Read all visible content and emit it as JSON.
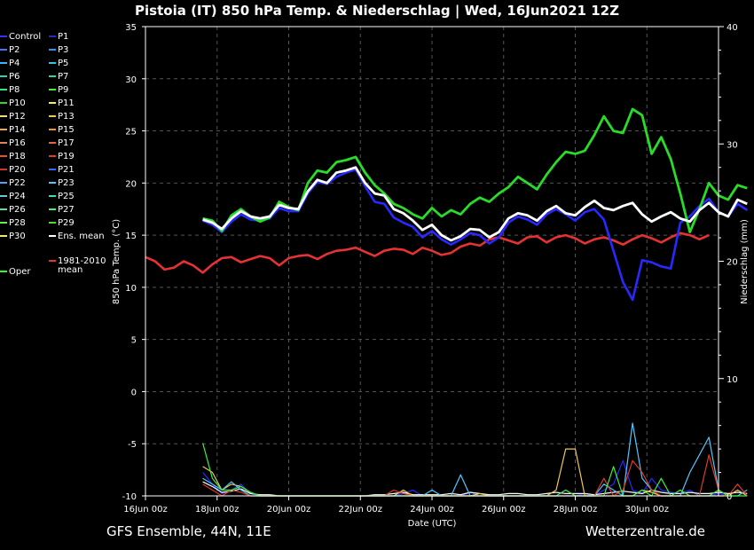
{
  "chart_data": {
    "type": "line",
    "title": "Pistoia  (IT)  850 hPa Temp. & Niederschlag | Wed, 16Jun2021 12Z",
    "footer_left": "GFS Ensemble, 44N, 11E",
    "footer_right": "Wetterzentrale.de",
    "xlabel": "Date (UTC)",
    "ylabel_left": "850 hPa Temp. (°C)",
    "ylabel_right": "Niederschlag (mm)",
    "x_ticks": [
      "16Jun 00z",
      "18Jun 00z",
      "20Jun 00z",
      "22Jun 00z",
      "24Jun 00z",
      "26Jun 00z",
      "28Jun 00z",
      "30Jun 00z"
    ],
    "x_range_hours": [
      0,
      360
    ],
    "x_step_hours": 6,
    "y_left_range": [
      -10,
      35
    ],
    "y_left_ticks": [
      "35",
      "30",
      "25",
      "20",
      "15",
      "10",
      "5",
      "0",
      "-5",
      "-10"
    ],
    "y_right_range": [
      0,
      40
    ],
    "y_right_ticks": [
      "40",
      "30",
      "20",
      "10",
      "0"
    ],
    "grid": true,
    "legend_position": "left",
    "legend": [
      {
        "label": "Control",
        "color": "#3030ff"
      },
      {
        "label": "P1",
        "color": "#2828c8"
      },
      {
        "label": "P2",
        "color": "#3c78ff"
      },
      {
        "label": "P3",
        "color": "#2896ff"
      },
      {
        "label": "P4",
        "color": "#3cb4ff"
      },
      {
        "label": "P5",
        "color": "#28c8e6"
      },
      {
        "label": "P6",
        "color": "#28d2b4"
      },
      {
        "label": "P7",
        "color": "#28dc96"
      },
      {
        "label": "P8",
        "color": "#32e678"
      },
      {
        "label": "P9",
        "color": "#3cf03c"
      },
      {
        "label": "P10",
        "color": "#28dc28"
      },
      {
        "label": "P11",
        "color": "#f0f050"
      },
      {
        "label": "P12",
        "color": "#f5dc78"
      },
      {
        "label": "P13",
        "color": "#f0c850"
      },
      {
        "label": "P14",
        "color": "#f0aa3c"
      },
      {
        "label": "P15",
        "color": "#f09628"
      },
      {
        "label": "P16",
        "color": "#e6825a"
      },
      {
        "label": "P17",
        "color": "#e6643c"
      },
      {
        "label": "P18",
        "color": "#e65028"
      },
      {
        "label": "P19",
        "color": "#dc3c28"
      },
      {
        "label": "P20",
        "color": "#d23232"
      },
      {
        "label": "P21",
        "color": "#3c64ff"
      },
      {
        "label": "P22",
        "color": "#50a0ff"
      },
      {
        "label": "P23",
        "color": "#50c8ff"
      },
      {
        "label": "P24",
        "color": "#64c8dc"
      },
      {
        "label": "P25",
        "color": "#3cdcb4"
      },
      {
        "label": "P26",
        "color": "#50e696"
      },
      {
        "label": "P27",
        "color": "#3cf078"
      },
      {
        "label": "P28",
        "color": "#64f050"
      },
      {
        "label": "P29",
        "color": "#50dc28"
      },
      {
        "label": "P30",
        "color": "#f0f03c"
      },
      {
        "label": "Ens. mean",
        "color": "#ffffff"
      },
      {
        "label": "Oper",
        "color": "#28ff28"
      },
      {
        "label": "1981-2010\nmean",
        "color": "#e63232"
      }
    ],
    "series": [
      {
        "name": "Ens. mean",
        "role": "mean",
        "color": "#ffffff",
        "start_hour": 36,
        "values": [
          16.5,
          16.2,
          15.6,
          16.6,
          17.3,
          16.8,
          16.6,
          16.8,
          17.9,
          17.6,
          17.5,
          19.2,
          20.3,
          20.0,
          21.0,
          21.2,
          21.5,
          20.0,
          19.0,
          18.8,
          17.5,
          17.1,
          16.4,
          15.5,
          16.0,
          15.0,
          14.5,
          14.9,
          15.6,
          15.5,
          14.8,
          15.3,
          16.6,
          17.1,
          16.9,
          16.4,
          17.3,
          17.8,
          17.1,
          16.9,
          17.7,
          18.3,
          17.6,
          17.4,
          17.8,
          18.1,
          17.0,
          16.3,
          16.8,
          17.2,
          16.6,
          16.3,
          17.4,
          18.1,
          17.2,
          16.8,
          18.4,
          18.0
        ]
      },
      {
        "name": "Oper",
        "role": "oper",
        "color": "#28dc28",
        "start_hour": 36,
        "values": [
          16.6,
          16.4,
          15.4,
          16.9,
          17.5,
          16.8,
          16.3,
          16.7,
          18.2,
          17.7,
          17.4,
          20.0,
          21.2,
          21.0,
          22.0,
          22.2,
          22.5,
          21.0,
          19.8,
          19.0,
          18.0,
          17.6,
          17.0,
          16.6,
          17.6,
          16.8,
          17.4,
          17.0,
          18.0,
          18.6,
          18.2,
          19.0,
          19.6,
          20.6,
          20.0,
          19.4,
          20.8,
          22.0,
          23.0,
          22.8,
          23.1,
          24.6,
          26.4,
          25.0,
          24.8,
          27.1,
          26.5,
          22.8,
          24.4,
          22.3,
          19.0,
          15.3,
          17.5,
          20.0,
          18.8,
          18.4,
          19.8,
          19.5
        ]
      },
      {
        "name": "Control",
        "role": "control",
        "color": "#2828ff",
        "start_hour": 36,
        "values": [
          16.4,
          16.0,
          15.3,
          16.3,
          17.0,
          16.5,
          16.4,
          16.6,
          17.6,
          17.3,
          17.3,
          19.0,
          20.1,
          19.9,
          20.6,
          21.0,
          21.3,
          19.7,
          18.2,
          18.0,
          16.7,
          16.2,
          15.8,
          14.8,
          15.4,
          14.6,
          14.1,
          14.6,
          15.2,
          15.0,
          14.2,
          14.8,
          16.2,
          16.8,
          16.5,
          16.0,
          17.0,
          17.5,
          17.0,
          16.4,
          17.2,
          17.5,
          16.5,
          13.5,
          10.5,
          8.8,
          12.6,
          12.4,
          12.0,
          11.8,
          16.2,
          16.8,
          17.8,
          18.5,
          17.2,
          16.8,
          18.0,
          17.4
        ]
      },
      {
        "name": "1981-2010\nmean",
        "role": "clim",
        "color": "#e63232",
        "start_hour": 0,
        "values": [
          12.9,
          12.5,
          11.7,
          11.9,
          12.5,
          12.1,
          11.4,
          12.2,
          12.8,
          12.9,
          12.4,
          12.7,
          13.0,
          12.8,
          12.1,
          12.8,
          13.0,
          13.1,
          12.7,
          13.2,
          13.5,
          13.6,
          13.8,
          13.4,
          13.0,
          13.5,
          13.7,
          13.6,
          13.2,
          13.8,
          13.5,
          13.1,
          13.3,
          13.9,
          14.2,
          14.0,
          14.6,
          14.8,
          14.5,
          14.2,
          14.8,
          14.9,
          14.3,
          14.8,
          15.0,
          14.7,
          14.2,
          14.6,
          14.8,
          14.5,
          14.1,
          14.6,
          15.0,
          14.7,
          14.3,
          14.8,
          15.2,
          15.0,
          14.6,
          15.0
        ]
      },
      {
        "name": "Niederschlag Control",
        "role": "precip",
        "axis": "right",
        "color": "#2828ff",
        "start_hour": 36,
        "values": [
          2.0,
          1.0,
          0.2,
          0.5,
          1.0,
          0.2,
          0.0,
          0.0,
          0.0,
          0.0,
          0.0,
          0.0,
          0.0,
          0.0,
          0.0,
          0.0,
          0.0,
          0.0,
          0.0,
          0.0,
          0.0,
          0.2,
          0.5,
          0.0,
          0.0,
          0.0,
          0.0,
          0.0,
          0.3,
          0.0,
          0.0,
          0.0,
          0.0,
          0.0,
          0.0,
          0.0,
          0.0,
          0.0,
          0.5,
          0.0,
          0.2,
          0.0,
          0.5,
          1.0,
          3.0,
          0.5,
          0.2,
          1.5,
          0.5,
          0.3,
          0.2,
          0.5,
          0.0,
          0.0,
          0.2,
          0.0,
          0.5,
          0.0
        ]
      },
      {
        "name": "Niederschlag Ens. mean",
        "role": "precip",
        "axis": "right",
        "color": "#ffffff",
        "start_hour": 36,
        "values": [
          1.2,
          0.8,
          0.3,
          0.4,
          0.6,
          0.2,
          0.1,
          0.1,
          0.0,
          0.0,
          0.0,
          0.0,
          0.0,
          0.0,
          0.0,
          0.0,
          0.0,
          0.0,
          0.1,
          0.1,
          0.2,
          0.3,
          0.1,
          0.1,
          0.1,
          0.1,
          0.2,
          0.1,
          0.3,
          0.2,
          0.1,
          0.1,
          0.2,
          0.2,
          0.1,
          0.1,
          0.2,
          0.3,
          0.2,
          0.2,
          0.2,
          0.1,
          0.2,
          0.3,
          0.4,
          0.3,
          0.2,
          0.5,
          0.3,
          0.2,
          0.2,
          0.3,
          0.2,
          0.2,
          0.3,
          0.2,
          0.3,
          0.2
        ]
      },
      {
        "name": "Niederschlag P12",
        "role": "precip",
        "axis": "right",
        "color": "#f0c850",
        "start_hour": 36,
        "values": [
          2.5,
          2.0,
          0.5,
          1.0,
          0.8,
          0.3,
          0.0,
          0.0,
          0.0,
          0.0,
          0.0,
          0.0,
          0.0,
          0.0,
          0.0,
          0.0,
          0.0,
          0.0,
          0.0,
          0.0,
          0.0,
          0.5,
          0.0,
          0.0,
          0.0,
          0.0,
          0.0,
          0.0,
          0.0,
          0.2,
          0.0,
          0.0,
          0.0,
          0.0,
          0.0,
          0.0,
          0.0,
          0.5,
          4.0,
          4.0,
          0.0,
          0.0,
          0.0,
          0.0,
          0.0,
          0.0,
          0.5,
          0.3,
          0.0,
          0.0,
          0.0,
          0.0,
          0.0,
          0.0,
          0.0,
          0.0,
          0.5,
          0.0
        ]
      },
      {
        "name": "Niederschlag P23",
        "role": "precip",
        "axis": "right",
        "color": "#50c8ff",
        "start_hour": 36,
        "values": [
          1.5,
          1.0,
          0.5,
          1.2,
          0.5,
          0.0,
          0.0,
          0.0,
          0.0,
          0.0,
          0.0,
          0.0,
          0.0,
          0.0,
          0.0,
          0.0,
          0.0,
          0.0,
          0.0,
          0.0,
          0.0,
          0.0,
          0.0,
          0.0,
          0.5,
          0.0,
          0.0,
          1.8,
          0.0,
          0.0,
          0.0,
          0.0,
          0.0,
          0.0,
          0.0,
          0.0,
          0.0,
          0.0,
          0.0,
          0.0,
          0.0,
          0.0,
          1.0,
          0.5,
          0.0,
          6.2,
          1.5,
          0.5,
          0.0,
          0.0,
          0.0,
          2.0,
          3.5,
          5.0,
          0.5,
          0.0,
          0.0,
          0.5
        ]
      },
      {
        "name": "Niederschlag P19",
        "role": "precip",
        "axis": "right",
        "color": "#dc3c28",
        "start_hour": 36,
        "values": [
          1.0,
          0.5,
          0.0,
          0.5,
          0.3,
          0.0,
          0.0,
          0.0,
          0.0,
          0.0,
          0.0,
          0.0,
          0.0,
          0.0,
          0.0,
          0.0,
          0.0,
          0.0,
          0.0,
          0.0,
          0.5,
          0.2,
          0.0,
          0.0,
          0.0,
          0.0,
          0.0,
          0.0,
          0.0,
          0.0,
          0.0,
          0.0,
          0.0,
          0.0,
          0.0,
          0.0,
          0.0,
          0.0,
          0.0,
          0.0,
          0.0,
          0.0,
          1.5,
          0.0,
          0.5,
          3.0,
          2.0,
          0.5,
          0.0,
          0.0,
          0.5,
          0.0,
          0.0,
          3.5,
          0.5,
          0.0,
          1.0,
          0.0
        ]
      },
      {
        "name": "Niederschlag P9",
        "role": "precip",
        "axis": "right",
        "color": "#3cf03c",
        "start_hour": 36,
        "values": [
          4.5,
          1.5,
          0.5,
          0.5,
          0.8,
          0.3,
          0.0,
          0.0,
          0.0,
          0.0,
          0.0,
          0.0,
          0.0,
          0.0,
          0.0,
          0.0,
          0.0,
          0.0,
          0.0,
          0.0,
          0.0,
          0.0,
          0.0,
          0.0,
          0.0,
          0.0,
          0.0,
          0.0,
          0.0,
          0.0,
          0.0,
          0.0,
          0.0,
          0.0,
          0.0,
          0.0,
          0.0,
          0.0,
          0.5,
          0.0,
          0.0,
          0.0,
          0.0,
          2.5,
          0.0,
          0.0,
          0.5,
          0.0,
          1.5,
          0.0,
          0.5,
          0.0,
          0.0,
          0.0,
          0.5,
          0.0,
          0.0,
          0.0
        ]
      }
    ]
  }
}
